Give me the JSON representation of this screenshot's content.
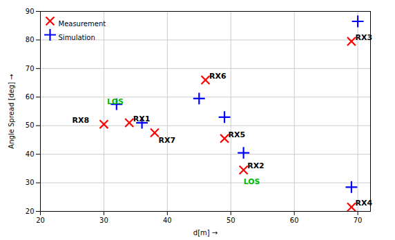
{
  "chart_data": {
    "type": "scatter",
    "xlabel": "d[m]",
    "ylabel": "Angle Spread [deg]",
    "series": [
      {
        "name": "Measurement",
        "color": "#ff0000",
        "marker": "x",
        "x": [
          30,
          34,
          38,
          46,
          49,
          52,
          69,
          69
        ],
        "y": [
          50.5,
          51.0,
          47.5,
          66,
          45.5,
          34.5,
          21.5,
          79.5
        ]
      },
      {
        "name": "Simulation",
        "color": "#0000ff",
        "marker": "+",
        "x": [
          32,
          36,
          45,
          49,
          52,
          69,
          70
        ],
        "y": [
          57.5,
          51.0,
          59.5,
          53.0,
          40.5,
          28.5,
          86.5
        ]
      }
    ],
    "annotations": [
      {
        "text": "RX8",
        "x": 25.0,
        "y": 51.0,
        "color": "black"
      },
      {
        "text": "RX1",
        "x": 34.6,
        "y": 51.5,
        "color": "black"
      },
      {
        "text": "RX7",
        "x": 38.6,
        "y": 44.0,
        "color": "black"
      },
      {
        "text": "RX6",
        "x": 46.6,
        "y": 66.5,
        "color": "black"
      },
      {
        "text": "RX5",
        "x": 49.6,
        "y": 46.0,
        "color": "black"
      },
      {
        "text": "RX2",
        "x": 52.6,
        "y": 35.0,
        "color": "black"
      },
      {
        "text": "RX4",
        "x": 69.6,
        "y": 22.0,
        "color": "black"
      },
      {
        "text": "RX3",
        "x": 69.6,
        "y": 80.0,
        "color": "black"
      },
      {
        "text": "LOS",
        "x": 52,
        "y": 29.5,
        "color": "#00bb00"
      },
      {
        "text": "LOS",
        "x": 30.5,
        "y": 57.5,
        "color": "#00bb00"
      }
    ],
    "xlim": [
      20,
      72
    ],
    "ylim": [
      20,
      90
    ],
    "xticks": [
      20,
      30,
      40,
      50,
      60,
      70
    ],
    "yticks": [
      20,
      30,
      40,
      50,
      60,
      70,
      80,
      90
    ],
    "grid": true,
    "legend": "upper left"
  }
}
